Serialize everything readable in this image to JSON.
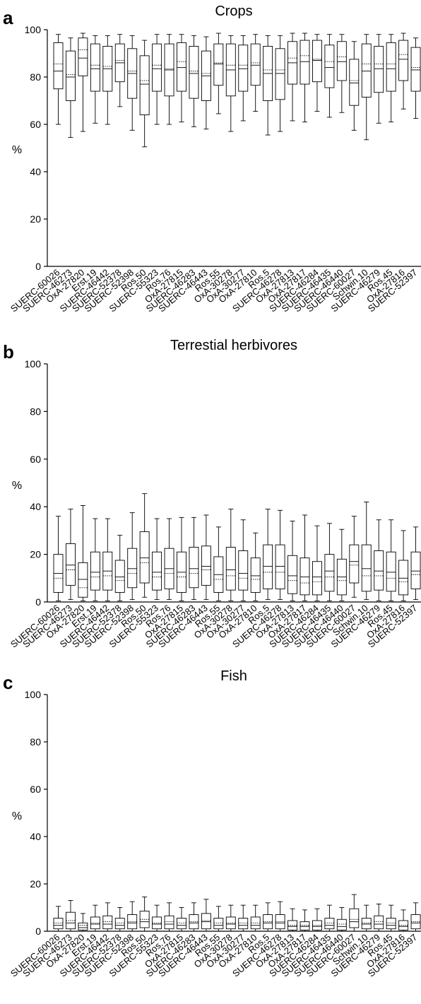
{
  "figure": {
    "panels": [
      {
        "letter": "a",
        "title": "Crops"
      },
      {
        "letter": "b",
        "title": "Terrestial herbivores"
      },
      {
        "letter": "c",
        "title": "Fish"
      }
    ]
  },
  "chart_data": [
    {
      "type": "box",
      "panel": "a",
      "title": "Crops",
      "ylabel": "%",
      "ylim": [
        0,
        100
      ],
      "yticks": [
        0,
        20,
        40,
        60,
        80,
        100
      ],
      "grid": false,
      "legend": "none",
      "box_style": "box = 25th-75th percentile, solid line = median, dotted line = mean, whiskers = min/max",
      "categories": [
        "SUERC-60026",
        "SUERC-46273",
        "OxA-27820",
        "Erst.19",
        "SUERC-46442",
        "SUERC-52378",
        "SUERC-52398",
        "Ros.50",
        "SUERC-55323",
        "Ros.76",
        "OxA-27815",
        "SUERC-46283",
        "SUERC-46443",
        "Ros.55",
        "OxA-30278",
        "OxA-30277",
        "OxA-27810",
        "Ros.5",
        "SUERC-46278",
        "OxA-27813",
        "OxA-27817",
        "SUERC-46284",
        "SUERC-46435",
        "SUERC-46440",
        "SUERC-60027",
        "Schwin.10",
        "SUERC-46279",
        "Ros.45",
        "OxA-27816",
        "SUERC-52397"
      ],
      "min": [
        60,
        54.5,
        57,
        60.5,
        60,
        67.5,
        57.5,
        50.5,
        60,
        60,
        61,
        59,
        58,
        64.5,
        57,
        61.5,
        65.5,
        55.5,
        57,
        61.5,
        61,
        65.5,
        63,
        65,
        57.5,
        53.5,
        60.5,
        61,
        66.5,
        62.5
      ],
      "q1": [
        75,
        70,
        80.5,
        74,
        74,
        78,
        71,
        64,
        74,
        72,
        74,
        71,
        70,
        76.5,
        72,
        74,
        76.5,
        70,
        70.5,
        77,
        77,
        78,
        75.5,
        78.5,
        68,
        71.5,
        73.5,
        74,
        78.5,
        74
      ],
      "median": [
        82.5,
        80,
        88,
        83.5,
        83.5,
        86,
        81.5,
        77,
        83.5,
        83,
        84,
        81.5,
        80.5,
        85.5,
        83,
        83.5,
        85,
        81.5,
        81.5,
        86,
        86.5,
        87,
        84,
        86.5,
        77.5,
        82.5,
        83.5,
        83.5,
        87.5,
        83
      ],
      "mean": [
        85.5,
        81,
        91.5,
        85,
        84.5,
        87,
        82.5,
        78.5,
        85,
        83.5,
        86.5,
        82.5,
        81.5,
        86,
        85,
        85,
        86,
        83,
        83,
        88,
        89,
        87.5,
        86.5,
        88.5,
        78.5,
        85.5,
        85.5,
        85.5,
        89.5,
        84
      ],
      "q3": [
        94.5,
        91,
        96.5,
        94,
        93,
        94,
        92,
        89,
        94,
        94,
        94.5,
        93,
        91,
        94,
        94,
        93.5,
        94,
        93,
        92,
        95,
        95.5,
        95.5,
        93.5,
        95,
        87.5,
        94,
        93,
        94.5,
        95.5,
        92.5
      ],
      "max": [
        98,
        96.5,
        98.5,
        97.5,
        97.5,
        98,
        97.5,
        95.5,
        98,
        98,
        98,
        97.5,
        97,
        98.5,
        97.5,
        97.5,
        98,
        97.5,
        97.5,
        98.5,
        98.5,
        98,
        98,
        98,
        95,
        98,
        98,
        98,
        98.5,
        96.5
      ]
    },
    {
      "type": "box",
      "panel": "b",
      "title": "Terrestial herbivores",
      "ylabel": "%",
      "ylim": [
        0,
        100
      ],
      "yticks": [
        0,
        20,
        40,
        60,
        80,
        100
      ],
      "grid": false,
      "legend": "none",
      "categories": [
        "SUERC-60026",
        "SUERC-46273",
        "OxA-27820",
        "Erst.19",
        "SUERC-46442",
        "SUERC-52378",
        "SUERC-52398",
        "Ros.50",
        "SUERC-55323",
        "Ros.76",
        "OxA-27815",
        "SUERC-46283",
        "SUERC-46443",
        "Ros.55",
        "OxA-30278",
        "OxA-30277",
        "OxA-27810",
        "Ros.5",
        "SUERC-46278",
        "OxA-27813",
        "OxA-27817",
        "SUERC-46284",
        "SUERC-46435",
        "SUERC-46440",
        "SUERC-60027",
        "Schwin.10",
        "SUERC-46279",
        "Ros.45",
        "OxA-27816",
        "SUERC-52397"
      ],
      "min": [
        0.5,
        1,
        0.5,
        0.5,
        0.5,
        0.5,
        1,
        2,
        1,
        1,
        0.5,
        1,
        1,
        0.5,
        0.5,
        0.5,
        0.5,
        1,
        1,
        0.5,
        0.5,
        0.5,
        0.5,
        0.5,
        2,
        1,
        0.5,
        0.5,
        0.5,
        1
      ],
      "q1": [
        4,
        7,
        2,
        5,
        5,
        4,
        6,
        8,
        5,
        5.5,
        4,
        6,
        7,
        4,
        5,
        5,
        4,
        5.5,
        5.5,
        3.5,
        3,
        3,
        4.5,
        3,
        8,
        4.5,
        5,
        4.5,
        3,
        5.5
      ],
      "median": [
        12,
        15.5,
        9.5,
        12.5,
        13,
        10.5,
        14,
        18.5,
        12.5,
        14,
        12.5,
        14,
        15,
        11.5,
        13.5,
        12,
        11,
        15,
        15,
        11,
        10.5,
        10.5,
        13,
        10.5,
        17,
        14,
        13,
        12.5,
        10,
        13
      ],
      "mean": [
        10,
        13.5,
        6,
        10.5,
        11,
        9,
        12,
        16.5,
        10.5,
        12,
        10.5,
        12,
        13.5,
        9.5,
        11,
        10,
        9.5,
        12.5,
        12.5,
        9,
        8,
        8.5,
        10.5,
        9,
        15.5,
        11,
        11,
        10,
        8.5,
        11.5
      ],
      "q3": [
        20,
        24.5,
        16.5,
        21,
        21,
        17.5,
        22.5,
        29.5,
        21,
        22.5,
        21,
        23,
        23.5,
        19,
        23,
        21.5,
        18.5,
        24,
        24,
        19.5,
        18.5,
        17,
        20,
        18,
        24,
        24,
        21.5,
        21,
        17.5,
        21
      ],
      "max": [
        36,
        39,
        40.5,
        35,
        35,
        28,
        37.5,
        45.5,
        35,
        35,
        35.5,
        35.5,
        36.5,
        31.5,
        39,
        34.5,
        29,
        39,
        38.5,
        34,
        36.5,
        32,
        33,
        30.5,
        36,
        42,
        34.5,
        34.5,
        30,
        31.5
      ]
    },
    {
      "type": "box",
      "panel": "c",
      "title": "Fish",
      "ylabel": "%",
      "ylim": [
        0,
        100
      ],
      "yticks": [
        0,
        20,
        40,
        60,
        80,
        100
      ],
      "grid": false,
      "legend": "none",
      "categories": [
        "SUERC-60026",
        "SUERC-46273",
        "OxA-27820",
        "Erst.19",
        "SUERC-46442",
        "SUERC-52378",
        "SUERC-52398",
        "Ros.50",
        "SUERC-55323",
        "Ros.76",
        "OxA-27815",
        "SUERC-46283",
        "SUERC-46443",
        "Ros.55",
        "OxA-30278",
        "OxA-30277",
        "OxA-27810",
        "Ros.5",
        "SUERC-46278",
        "OxA-27813",
        "OxA-27817",
        "SUERC-46284",
        "SUERC-46435",
        "SUERC-46440",
        "SUERC-60027",
        "Schwin.10",
        "SUERC-46279",
        "Ros.45",
        "OxA-27816",
        "SUERC-52397"
      ],
      "min": [
        0,
        0,
        0,
        0,
        0,
        0,
        0,
        0,
        0,
        0,
        0,
        0,
        0,
        0,
        0,
        0,
        0,
        0,
        0,
        0,
        0,
        0,
        0,
        0,
        0,
        0,
        0,
        0,
        0,
        0
      ],
      "q1": [
        1,
        1,
        0.5,
        1,
        1,
        1,
        1,
        1.5,
        1,
        1,
        1,
        1,
        1,
        1,
        1,
        1,
        1,
        1,
        1,
        0.5,
        0.5,
        0.5,
        1,
        0.5,
        1.5,
        1,
        1,
        1,
        0.5,
        1
      ],
      "median": [
        2.5,
        3.5,
        1.5,
        3,
        3,
        2.5,
        3.5,
        4,
        3,
        3,
        2.5,
        3.5,
        4,
        2.5,
        3,
        2.5,
        2.5,
        3.5,
        3.5,
        2,
        2,
        2,
        2.5,
        2,
        4,
        3,
        3,
        2.5,
        2,
        3.5
      ],
      "mean": [
        3.5,
        4.5,
        2.5,
        3.5,
        4,
        3.5,
        4,
        5,
        3.5,
        4,
        3.5,
        4,
        4.5,
        3.5,
        3.5,
        3.5,
        3.5,
        4,
        4,
        2.5,
        2.5,
        2.5,
        3.5,
        3,
        5,
        3.5,
        4,
        3.5,
        2.5,
        4
      ],
      "q3": [
        5.5,
        8,
        3.5,
        6,
        6.5,
        5.5,
        7,
        8.5,
        6,
        6.5,
        5.5,
        7,
        7.5,
        5.5,
        6,
        5.5,
        6,
        7,
        7,
        4.5,
        4,
        4.5,
        5.5,
        5,
        9.5,
        5.5,
        6.5,
        5.5,
        4.5,
        7
      ],
      "max": [
        10.5,
        13,
        7.5,
        11,
        12,
        10,
        12.5,
        14.5,
        11,
        12,
        10,
        12,
        13.5,
        10.5,
        11,
        11,
        11,
        12,
        12.5,
        9.5,
        9,
        9.5,
        11,
        10,
        15.5,
        11,
        11.5,
        11,
        9,
        12
      ]
    }
  ]
}
